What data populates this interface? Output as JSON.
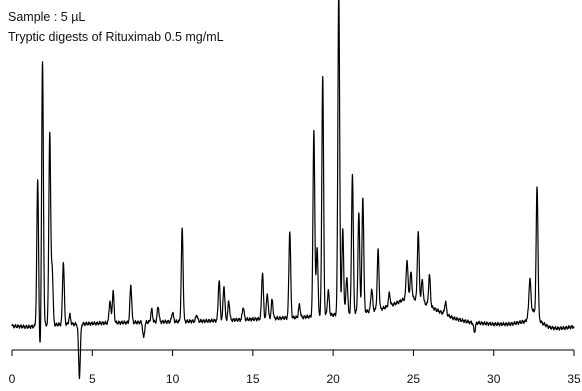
{
  "chart_data": {
    "type": "line",
    "title": "",
    "xlabel": "",
    "ylabel": "",
    "annotations": [
      "Sample : 5 µL",
      "Tryptic digests of Rituximab 0.5 mg/mL"
    ],
    "xlim": [
      0,
      35
    ],
    "x_ticks": [
      0,
      5,
      10,
      15,
      20,
      25,
      30,
      35
    ],
    "grid": false,
    "legend": "none",
    "line_color": "#000000",
    "baseline": [
      [
        0.0,
        0.0
      ],
      [
        1.0,
        -0.3
      ],
      [
        2.0,
        0.2
      ],
      [
        3.0,
        0.5
      ],
      [
        4.0,
        0.6
      ],
      [
        5.0,
        0.8
      ],
      [
        6.0,
        1.0
      ],
      [
        7.0,
        1.1
      ],
      [
        8.0,
        1.2
      ],
      [
        9.0,
        1.3
      ],
      [
        10.0,
        1.4
      ],
      [
        11.0,
        1.5
      ],
      [
        12.0,
        1.6
      ],
      [
        13.0,
        1.8
      ],
      [
        14.0,
        2.0
      ],
      [
        15.0,
        2.2
      ],
      [
        16.0,
        2.4
      ],
      [
        17.0,
        2.6
      ],
      [
        18.0,
        2.8
      ],
      [
        19.0,
        3.2
      ],
      [
        20.0,
        3.6
      ],
      [
        21.0,
        4.0
      ],
      [
        22.0,
        4.6
      ],
      [
        23.0,
        5.5
      ],
      [
        24.0,
        7.5
      ],
      [
        24.7,
        9.5
      ],
      [
        25.5,
        8.0
      ],
      [
        26.5,
        5.0
      ],
      [
        27.5,
        2.5
      ],
      [
        28.5,
        1.2
      ],
      [
        30.0,
        0.6
      ],
      [
        31.0,
        0.6
      ],
      [
        32.0,
        1.5
      ],
      [
        32.3,
        6.0
      ],
      [
        33.0,
        1.0
      ],
      [
        33.5,
        -0.5
      ],
      [
        34.0,
        -0.8
      ],
      [
        34.5,
        -0.6
      ],
      [
        35.0,
        -0.2
      ]
    ],
    "peaks": [
      {
        "x": 1.6,
        "height": 47
      },
      {
        "x": 1.75,
        "height": -9
      },
      {
        "x": 1.9,
        "height": 85
      },
      {
        "x": 2.35,
        "height": 62
      },
      {
        "x": 2.5,
        "height": 18
      },
      {
        "x": 3.2,
        "height": 20
      },
      {
        "x": 3.6,
        "height": 3
      },
      {
        "x": 4.2,
        "height": -17
      },
      {
        "x": 6.1,
        "height": 7
      },
      {
        "x": 6.3,
        "height": 10
      },
      {
        "x": 7.4,
        "height": 12
      },
      {
        "x": 8.2,
        "height": -5
      },
      {
        "x": 8.7,
        "height": 4
      },
      {
        "x": 9.1,
        "height": 5
      },
      {
        "x": 10.0,
        "height": 3
      },
      {
        "x": 10.6,
        "height": 30
      },
      {
        "x": 11.5,
        "height": 2
      },
      {
        "x": 12.9,
        "height": 13
      },
      {
        "x": 13.2,
        "height": 11
      },
      {
        "x": 13.5,
        "height": 6
      },
      {
        "x": 14.4,
        "height": 4
      },
      {
        "x": 15.6,
        "height": 15
      },
      {
        "x": 15.9,
        "height": 8
      },
      {
        "x": 16.2,
        "height": 6
      },
      {
        "x": 17.3,
        "height": 28
      },
      {
        "x": 17.9,
        "height": 4
      },
      {
        "x": 18.8,
        "height": 60
      },
      {
        "x": 19.0,
        "height": 22
      },
      {
        "x": 19.35,
        "height": 77
      },
      {
        "x": 19.7,
        "height": 8
      },
      {
        "x": 20.35,
        "height": 105
      },
      {
        "x": 20.6,
        "height": 27
      },
      {
        "x": 20.85,
        "height": 12
      },
      {
        "x": 21.2,
        "height": 45
      },
      {
        "x": 21.6,
        "height": 32
      },
      {
        "x": 21.85,
        "height": 37
      },
      {
        "x": 22.4,
        "height": 7
      },
      {
        "x": 22.8,
        "height": 19
      },
      {
        "x": 23.5,
        "height": 4
      },
      {
        "x": 24.6,
        "height": 12
      },
      {
        "x": 24.85,
        "height": 8
      },
      {
        "x": 25.3,
        "height": 22
      },
      {
        "x": 25.55,
        "height": 7
      },
      {
        "x": 26.0,
        "height": 10
      },
      {
        "x": 27.0,
        "height": 4
      },
      {
        "x": 28.8,
        "height": -3
      },
      {
        "x": 32.25,
        "height": 10
      },
      {
        "x": 32.7,
        "height": 42
      }
    ]
  }
}
